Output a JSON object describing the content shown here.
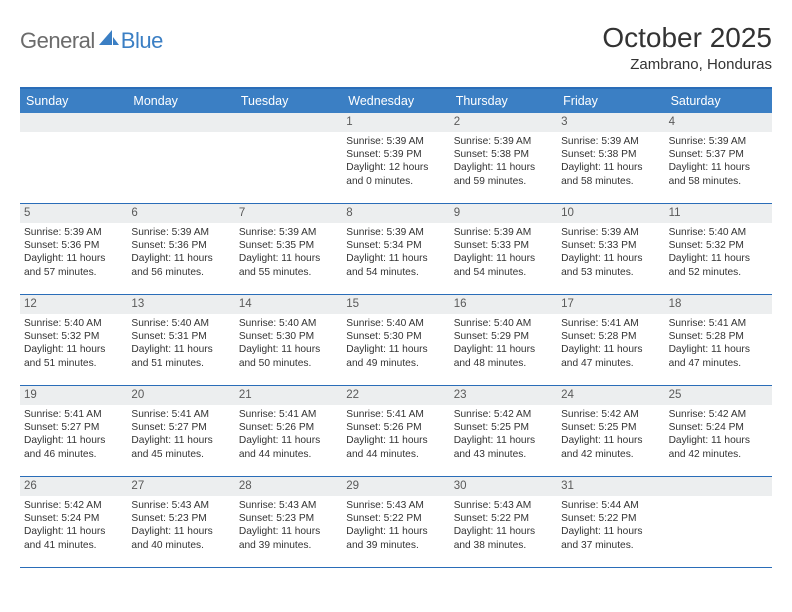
{
  "brand": {
    "part1": "General",
    "part2": "Blue"
  },
  "title": "October 2025",
  "location": "Zambrano, Honduras",
  "colors": {
    "header_bg": "#3b7fc4",
    "header_border": "#2a6db8",
    "daynum_bg": "#eceeef",
    "text": "#333333",
    "logo_gray": "#6b6b6b"
  },
  "day_names": [
    "Sunday",
    "Monday",
    "Tuesday",
    "Wednesday",
    "Thursday",
    "Friday",
    "Saturday"
  ],
  "weeks": [
    [
      null,
      null,
      null,
      {
        "n": "1",
        "sr": "5:39 AM",
        "ss": "5:39 PM",
        "dl": "12 hours and 0 minutes."
      },
      {
        "n": "2",
        "sr": "5:39 AM",
        "ss": "5:38 PM",
        "dl": "11 hours and 59 minutes."
      },
      {
        "n": "3",
        "sr": "5:39 AM",
        "ss": "5:38 PM",
        "dl": "11 hours and 58 minutes."
      },
      {
        "n": "4",
        "sr": "5:39 AM",
        "ss": "5:37 PM",
        "dl": "11 hours and 58 minutes."
      }
    ],
    [
      {
        "n": "5",
        "sr": "5:39 AM",
        "ss": "5:36 PM",
        "dl": "11 hours and 57 minutes."
      },
      {
        "n": "6",
        "sr": "5:39 AM",
        "ss": "5:36 PM",
        "dl": "11 hours and 56 minutes."
      },
      {
        "n": "7",
        "sr": "5:39 AM",
        "ss": "5:35 PM",
        "dl": "11 hours and 55 minutes."
      },
      {
        "n": "8",
        "sr": "5:39 AM",
        "ss": "5:34 PM",
        "dl": "11 hours and 54 minutes."
      },
      {
        "n": "9",
        "sr": "5:39 AM",
        "ss": "5:33 PM",
        "dl": "11 hours and 54 minutes."
      },
      {
        "n": "10",
        "sr": "5:39 AM",
        "ss": "5:33 PM",
        "dl": "11 hours and 53 minutes."
      },
      {
        "n": "11",
        "sr": "5:40 AM",
        "ss": "5:32 PM",
        "dl": "11 hours and 52 minutes."
      }
    ],
    [
      {
        "n": "12",
        "sr": "5:40 AM",
        "ss": "5:32 PM",
        "dl": "11 hours and 51 minutes."
      },
      {
        "n": "13",
        "sr": "5:40 AM",
        "ss": "5:31 PM",
        "dl": "11 hours and 51 minutes."
      },
      {
        "n": "14",
        "sr": "5:40 AM",
        "ss": "5:30 PM",
        "dl": "11 hours and 50 minutes."
      },
      {
        "n": "15",
        "sr": "5:40 AM",
        "ss": "5:30 PM",
        "dl": "11 hours and 49 minutes."
      },
      {
        "n": "16",
        "sr": "5:40 AM",
        "ss": "5:29 PM",
        "dl": "11 hours and 48 minutes."
      },
      {
        "n": "17",
        "sr": "5:41 AM",
        "ss": "5:28 PM",
        "dl": "11 hours and 47 minutes."
      },
      {
        "n": "18",
        "sr": "5:41 AM",
        "ss": "5:28 PM",
        "dl": "11 hours and 47 minutes."
      }
    ],
    [
      {
        "n": "19",
        "sr": "5:41 AM",
        "ss": "5:27 PM",
        "dl": "11 hours and 46 minutes."
      },
      {
        "n": "20",
        "sr": "5:41 AM",
        "ss": "5:27 PM",
        "dl": "11 hours and 45 minutes."
      },
      {
        "n": "21",
        "sr": "5:41 AM",
        "ss": "5:26 PM",
        "dl": "11 hours and 44 minutes."
      },
      {
        "n": "22",
        "sr": "5:41 AM",
        "ss": "5:26 PM",
        "dl": "11 hours and 44 minutes."
      },
      {
        "n": "23",
        "sr": "5:42 AM",
        "ss": "5:25 PM",
        "dl": "11 hours and 43 minutes."
      },
      {
        "n": "24",
        "sr": "5:42 AM",
        "ss": "5:25 PM",
        "dl": "11 hours and 42 minutes."
      },
      {
        "n": "25",
        "sr": "5:42 AM",
        "ss": "5:24 PM",
        "dl": "11 hours and 42 minutes."
      }
    ],
    [
      {
        "n": "26",
        "sr": "5:42 AM",
        "ss": "5:24 PM",
        "dl": "11 hours and 41 minutes."
      },
      {
        "n": "27",
        "sr": "5:43 AM",
        "ss": "5:23 PM",
        "dl": "11 hours and 40 minutes."
      },
      {
        "n": "28",
        "sr": "5:43 AM",
        "ss": "5:23 PM",
        "dl": "11 hours and 39 minutes."
      },
      {
        "n": "29",
        "sr": "5:43 AM",
        "ss": "5:22 PM",
        "dl": "11 hours and 39 minutes."
      },
      {
        "n": "30",
        "sr": "5:43 AM",
        "ss": "5:22 PM",
        "dl": "11 hours and 38 minutes."
      },
      {
        "n": "31",
        "sr": "5:44 AM",
        "ss": "5:22 PM",
        "dl": "11 hours and 37 minutes."
      },
      null
    ]
  ],
  "labels": {
    "sunrise": "Sunrise:",
    "sunset": "Sunset:",
    "daylight": "Daylight:"
  }
}
